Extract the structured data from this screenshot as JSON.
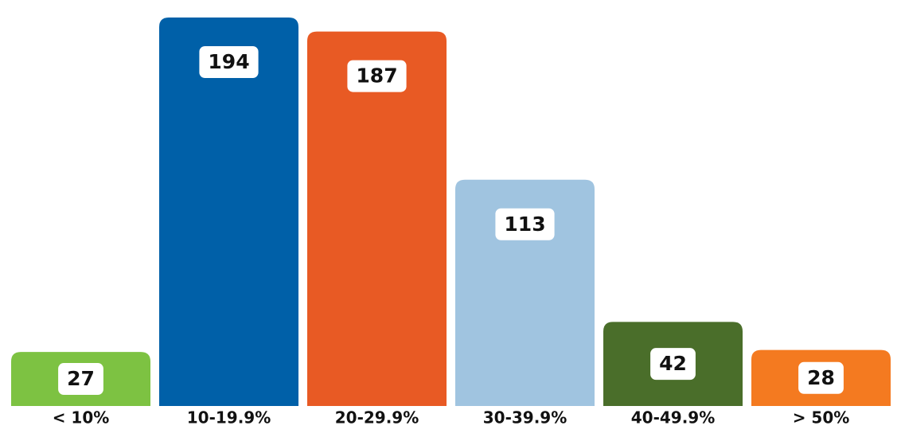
{
  "chart_data": {
    "type": "bar",
    "categories": [
      "< 10%",
      "10-19.9%",
      "20-29.9%",
      "30-39.9%",
      "40-49.9%",
      "> 50%"
    ],
    "values": [
      27,
      194,
      187,
      113,
      42,
      28
    ],
    "colors": [
      "#7dc242",
      "#0060a8",
      "#e85a24",
      "#a0c4e0",
      "#4a6e2a",
      "#f47a20"
    ],
    "data_labels": true
  }
}
